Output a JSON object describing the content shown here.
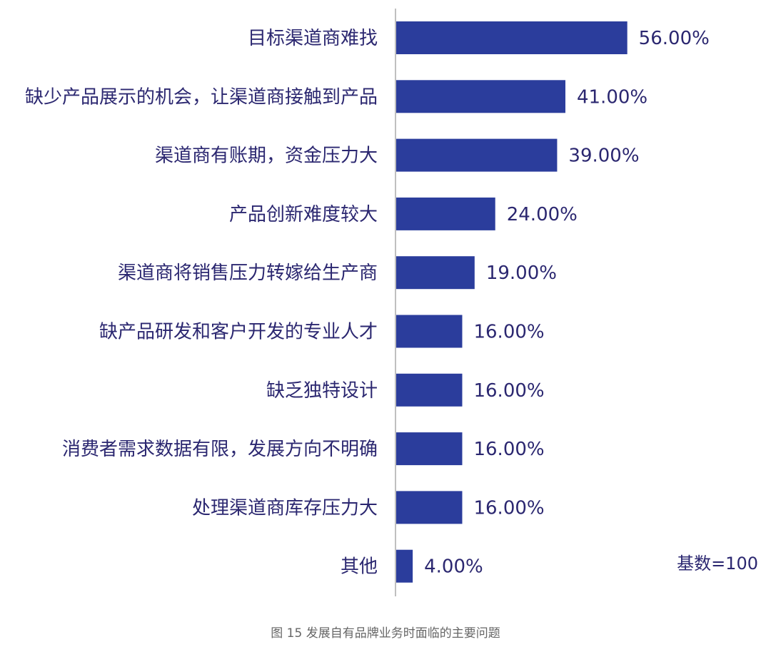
{
  "chart_data": {
    "type": "bar",
    "orientation": "horizontal",
    "categories": [
      "目标渠道商难找",
      "缺少产品展示的机会，让渠道商接触到产品",
      "渠道商有账期，资金压力大",
      "产品创新难度较大",
      "渠道商将销售压力转嫁给生产商",
      "缺产品研发和客户开发的专业人才",
      "缺乏独特设计",
      "消费者需求数据有限，发展方向不明确",
      "处理渠道商库存压力大",
      "其他"
    ],
    "values": [
      56,
      41,
      39,
      24,
      19,
      16,
      16,
      16,
      16,
      4
    ],
    "value_labels": [
      "56.00%",
      "41.00%",
      "39.00%",
      "24.00%",
      "19.00%",
      "16.00%",
      "16.00%",
      "16.00%",
      "16.00%",
      "4.00%"
    ],
    "xlim": [
      0,
      100
    ],
    "grid": false,
    "bar_color": "#2b3d9c",
    "axis_color": "#bfbfbf",
    "text_color": "#2b2770",
    "base_note": "基数=100",
    "caption": "图 15 发展自有品牌业务时面临的主要问题"
  }
}
